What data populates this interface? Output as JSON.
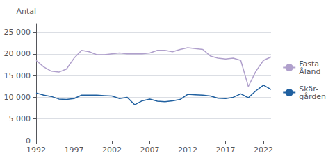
{
  "chart_data": {
    "type": "line",
    "ylabel": "Antal",
    "x": [
      1992,
      1993,
      1994,
      1995,
      1996,
      1997,
      1998,
      1999,
      2000,
      2001,
      2002,
      2003,
      2004,
      2005,
      2006,
      2007,
      2008,
      2009,
      2010,
      2011,
      2012,
      2013,
      2014,
      2015,
      2016,
      2017,
      2018,
      2019,
      2020,
      2021,
      2022,
      2023
    ],
    "series": [
      {
        "name": "Fasta\nÅland",
        "color": "#b0a0cc",
        "values": [
          18500,
          17000,
          16000,
          15800,
          16500,
          19000,
          20800,
          20500,
          19800,
          19800,
          20000,
          20200,
          20000,
          20000,
          20000,
          20200,
          20800,
          20800,
          20500,
          21000,
          21400,
          21200,
          21000,
          19500,
          19000,
          18800,
          19000,
          18500,
          12500,
          16000,
          18500,
          19300
        ]
      },
      {
        "name": "Skär-\ngården",
        "color": "#2060a0",
        "values": [
          11000,
          10500,
          10200,
          9600,
          9500,
          9700,
          10500,
          10500,
          10500,
          10400,
          10300,
          9700,
          10000,
          8300,
          9200,
          9600,
          9100,
          9000,
          9200,
          9500,
          10700,
          10600,
          10500,
          10300,
          9800,
          9700,
          10000,
          10800,
          9900,
          11500,
          12800,
          11800
        ]
      }
    ],
    "xlim": [
      1992,
      2023
    ],
    "xticks": [
      1992,
      1997,
      2002,
      2007,
      2012,
      2017,
      2022
    ],
    "ylim": [
      0,
      27000
    ],
    "yticks": [
      0,
      {
        "value": 5000,
        "label": "5 000"
      },
      {
        "value": 10000,
        "label": "10 000"
      },
      {
        "value": 15000,
        "label": "15 000"
      },
      {
        "value": 20000,
        "label": "20 000"
      },
      {
        "value": 25000,
        "label": "25 000"
      }
    ],
    "grid": true,
    "legend": "right"
  }
}
